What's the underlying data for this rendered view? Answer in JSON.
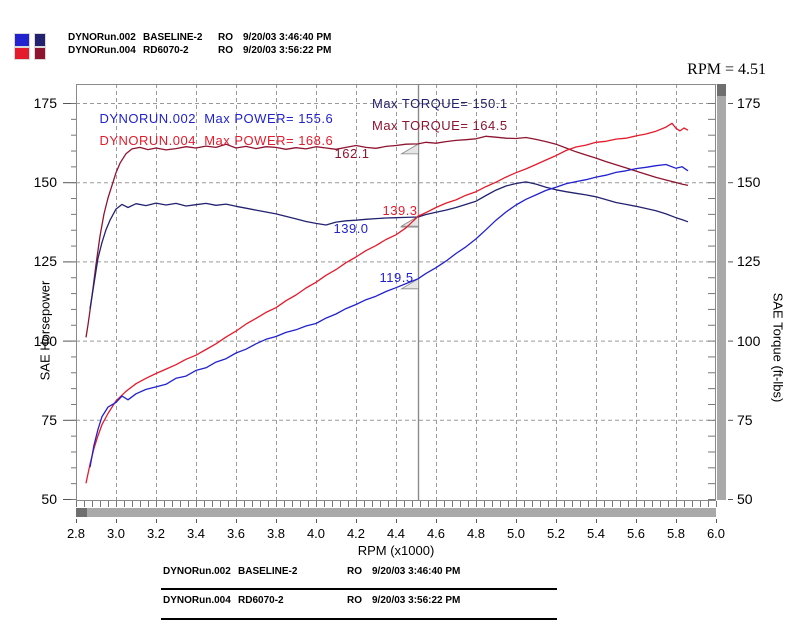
{
  "colors": {
    "power_blue": "#2222cf",
    "power_red": "#e41b2c",
    "torque_navy": "#232270",
    "torque_maroon": "#8e1430",
    "grid": "#9a9a9a",
    "axis": "#8a8a8a",
    "scrollbar": "#a9a9a9",
    "scrollbar_cap": "#6f6f6f",
    "cursor": "#8a8a8a"
  },
  "header": {
    "rpm_readout": "RPM = 4.51"
  },
  "legend": {
    "rows": [
      {
        "file": "DYNORun.002",
        "desc": "BASELINE-2",
        "op": "RO",
        "datetime": "9/20/03 3:46:40 PM"
      },
      {
        "file": "DYNORun.004",
        "desc": "RD6070-2",
        "op": "RO",
        "datetime": "9/20/03 3:56:22 PM"
      }
    ]
  },
  "annotations": {
    "rows": [
      {
        "run": "DYNORUN.002",
        "power": "Max POWER= 155.6",
        "torque": "Max TORQUE= 150.1"
      },
      {
        "run": "DYNORUN.004",
        "power": "Max POWER= 168.6",
        "torque": "Max TORQUE= 164.5"
      }
    ]
  },
  "footer_table": {
    "rows": [
      {
        "file": "DYNORun.002",
        "desc": "BASELINE-2",
        "op": "RO",
        "datetime": "9/20/03 3:46:40 PM"
      },
      {
        "file": "DYNORun.004",
        "desc": "RD6070-2",
        "op": "RO",
        "datetime": "9/20/03 3:56:22 PM"
      }
    ]
  },
  "chart_data": {
    "type": "line",
    "xlabel": "RPM (x1000)",
    "ylabel_left": "SAE Horsepower",
    "ylabel_right": "SAE Torque (ft-lbs)",
    "xlim": [
      2.8,
      6.0
    ],
    "ylim": [
      50,
      175
    ],
    "xticks": [
      "2.8",
      "3.0",
      "3.2",
      "3.4",
      "3.6",
      "3.8",
      "4.0",
      "4.2",
      "4.4",
      "4.6",
      "4.8",
      "5.0",
      "5.2",
      "5.4",
      "5.6",
      "5.8",
      "6.0"
    ],
    "yticks": [
      "175",
      "150",
      "125",
      "100",
      "75",
      "50"
    ],
    "ytick_values": [
      175,
      150,
      125,
      100,
      75,
      50
    ],
    "grid": true,
    "grid_style": "dashed",
    "legend_position": "top-left-outside",
    "cursor": {
      "rpm": 4.51
    },
    "series": [
      {
        "id": "torque-004",
        "run": "DYNORUN.004",
        "quantity": "torque",
        "color_key": "torque_maroon",
        "max": 164.5,
        "cursor_value": 162.1,
        "cursor_label": "162.1",
        "points": [
          [
            2.85,
            101
          ],
          [
            2.86,
            105
          ],
          [
            2.88,
            114
          ],
          [
            2.9,
            124
          ],
          [
            2.92,
            133
          ],
          [
            2.94,
            140
          ],
          [
            2.96,
            145
          ],
          [
            2.98,
            149
          ],
          [
            3.0,
            153
          ],
          [
            3.02,
            156
          ],
          [
            3.05,
            159
          ],
          [
            3.08,
            160.5
          ],
          [
            3.12,
            161
          ],
          [
            3.16,
            160.3
          ],
          [
            3.2,
            160.8
          ],
          [
            3.25,
            160.2
          ],
          [
            3.3,
            160.6
          ],
          [
            3.35,
            161.2
          ],
          [
            3.4,
            160.8
          ],
          [
            3.45,
            161.4
          ],
          [
            3.5,
            161.0
          ],
          [
            3.55,
            162.0
          ],
          [
            3.6,
            160.8
          ],
          [
            3.65,
            161.3
          ],
          [
            3.7,
            160.6
          ],
          [
            3.75,
            161.2
          ],
          [
            3.8,
            161.0
          ],
          [
            3.85,
            160.4
          ],
          [
            3.9,
            160.9
          ],
          [
            3.95,
            160.5
          ],
          [
            4.0,
            161.2
          ],
          [
            4.05,
            160.8
          ],
          [
            4.1,
            160.4
          ],
          [
            4.15,
            161.0
          ],
          [
            4.2,
            161.6
          ],
          [
            4.25,
            161.0
          ],
          [
            4.3,
            160.7
          ],
          [
            4.35,
            161.3
          ],
          [
            4.4,
            161.6
          ],
          [
            4.45,
            162.0
          ],
          [
            4.51,
            162.1
          ],
          [
            4.55,
            162.6
          ],
          [
            4.6,
            162.3
          ],
          [
            4.65,
            162.8
          ],
          [
            4.7,
            163.2
          ],
          [
            4.75,
            163.4
          ],
          [
            4.8,
            163.7
          ],
          [
            4.85,
            164.5
          ],
          [
            4.9,
            164.2
          ],
          [
            4.95,
            163.9
          ],
          [
            5.0,
            163.8
          ],
          [
            5.05,
            164.1
          ],
          [
            5.1,
            163.5
          ],
          [
            5.15,
            162.8
          ],
          [
            5.2,
            162.0
          ],
          [
            5.25,
            160.8
          ],
          [
            5.3,
            159.6
          ],
          [
            5.35,
            158.6
          ],
          [
            5.4,
            157.6
          ],
          [
            5.45,
            156.5
          ],
          [
            5.5,
            155.5
          ],
          [
            5.55,
            154.5
          ],
          [
            5.6,
            153.5
          ],
          [
            5.65,
            152.5
          ],
          [
            5.7,
            151.5
          ],
          [
            5.75,
            150.7
          ],
          [
            5.8,
            149.9
          ],
          [
            5.83,
            149.4
          ],
          [
            5.86,
            149.0
          ]
        ]
      },
      {
        "id": "torque-002",
        "run": "DYNORUN.002",
        "quantity": "torque",
        "color_key": "torque_navy",
        "max": 150.1,
        "cursor_value": 139.0,
        "cursor_label": "139.0",
        "points": [
          [
            2.87,
            110
          ],
          [
            2.89,
            118
          ],
          [
            2.91,
            126
          ],
          [
            2.93,
            131
          ],
          [
            2.95,
            135
          ],
          [
            2.97,
            138
          ],
          [
            3.0,
            141.5
          ],
          [
            3.03,
            143
          ],
          [
            3.06,
            142
          ],
          [
            3.1,
            143.2
          ],
          [
            3.15,
            142.6
          ],
          [
            3.2,
            143.4
          ],
          [
            3.25,
            142.8
          ],
          [
            3.3,
            143.3
          ],
          [
            3.35,
            142.5
          ],
          [
            3.4,
            142.9
          ],
          [
            3.45,
            143.3
          ],
          [
            3.5,
            142.7
          ],
          [
            3.55,
            143.1
          ],
          [
            3.6,
            142.4
          ],
          [
            3.65,
            141.8
          ],
          [
            3.7,
            141.2
          ],
          [
            3.75,
            140.6
          ],
          [
            3.8,
            140.0
          ],
          [
            3.85,
            139.2
          ],
          [
            3.9,
            138.4
          ],
          [
            3.95,
            137.6
          ],
          [
            4.0,
            137.0
          ],
          [
            4.05,
            136.5
          ],
          [
            4.1,
            137.4
          ],
          [
            4.15,
            137.8
          ],
          [
            4.2,
            138.0
          ],
          [
            4.25,
            138.3
          ],
          [
            4.3,
            138.5
          ],
          [
            4.35,
            138.7
          ],
          [
            4.4,
            138.8
          ],
          [
            4.45,
            138.9
          ],
          [
            4.51,
            139.0
          ],
          [
            4.55,
            139.8
          ],
          [
            4.6,
            140.5
          ],
          [
            4.65,
            141.2
          ],
          [
            4.7,
            142.0
          ],
          [
            4.75,
            143.0
          ],
          [
            4.8,
            144.0
          ],
          [
            4.85,
            145.8
          ],
          [
            4.9,
            147.5
          ],
          [
            4.95,
            148.8
          ],
          [
            5.0,
            149.6
          ],
          [
            5.05,
            150.1
          ],
          [
            5.1,
            149.4
          ],
          [
            5.15,
            148.4
          ],
          [
            5.2,
            147.6
          ],
          [
            5.25,
            147.0
          ],
          [
            5.3,
            146.5
          ],
          [
            5.35,
            146.0
          ],
          [
            5.4,
            145.4
          ],
          [
            5.45,
            144.5
          ],
          [
            5.5,
            143.6
          ],
          [
            5.55,
            143.0
          ],
          [
            5.6,
            142.4
          ],
          [
            5.65,
            141.7
          ],
          [
            5.7,
            141.0
          ],
          [
            5.75,
            140.0
          ],
          [
            5.8,
            138.8
          ],
          [
            5.83,
            138.2
          ],
          [
            5.86,
            137.5
          ]
        ]
      },
      {
        "id": "power-004",
        "run": "DYNORUN.004",
        "quantity": "power",
        "color_key": "power_red",
        "max": 168.6,
        "cursor_value": 139.3,
        "cursor_label": "139.3",
        "points": [
          [
            2.85,
            55
          ],
          [
            2.87,
            61
          ],
          [
            2.89,
            66
          ],
          [
            2.91,
            70
          ],
          [
            2.93,
            73.5
          ],
          [
            2.96,
            77
          ],
          [
            3.0,
            81
          ],
          [
            3.05,
            84
          ],
          [
            3.1,
            86.4
          ],
          [
            3.15,
            88.1
          ],
          [
            3.2,
            89.6
          ],
          [
            3.25,
            91.0
          ],
          [
            3.3,
            92.4
          ],
          [
            3.35,
            94.1
          ],
          [
            3.4,
            95.4
          ],
          [
            3.45,
            97.2
          ],
          [
            3.5,
            99.0
          ],
          [
            3.55,
            101.1
          ],
          [
            3.6,
            103.0
          ],
          [
            3.65,
            105.2
          ],
          [
            3.7,
            107.0
          ],
          [
            3.75,
            108.9
          ],
          [
            3.8,
            110.4
          ],
          [
            3.85,
            112.6
          ],
          [
            3.9,
            114.4
          ],
          [
            3.95,
            116.6
          ],
          [
            4.0,
            118.4
          ],
          [
            4.05,
            120.6
          ],
          [
            4.1,
            122.4
          ],
          [
            4.15,
            124.6
          ],
          [
            4.2,
            126.4
          ],
          [
            4.25,
            128.4
          ],
          [
            4.3,
            130.0
          ],
          [
            4.35,
            131.9
          ],
          [
            4.4,
            133.4
          ],
          [
            4.45,
            135.6
          ],
          [
            4.5,
            138.6
          ],
          [
            4.51,
            139.3
          ],
          [
            4.55,
            140.4
          ],
          [
            4.6,
            142.0
          ],
          [
            4.65,
            143.4
          ],
          [
            4.7,
            144.4
          ],
          [
            4.75,
            145.9
          ],
          [
            4.8,
            147.0
          ],
          [
            4.85,
            148.6
          ],
          [
            4.9,
            150.0
          ],
          [
            4.95,
            151.6
          ],
          [
            5.0,
            153.0
          ],
          [
            5.05,
            154.2
          ],
          [
            5.1,
            155.6
          ],
          [
            5.15,
            157.0
          ],
          [
            5.2,
            158.4
          ],
          [
            5.25,
            160.0
          ],
          [
            5.3,
            161.1
          ],
          [
            5.35,
            161.7
          ],
          [
            5.4,
            162.6
          ],
          [
            5.45,
            162.9
          ],
          [
            5.5,
            163.6
          ],
          [
            5.55,
            163.9
          ],
          [
            5.6,
            164.6
          ],
          [
            5.65,
            165.2
          ],
          [
            5.7,
            166.1
          ],
          [
            5.75,
            167.4
          ],
          [
            5.78,
            168.6
          ],
          [
            5.8,
            167.0
          ],
          [
            5.82,
            166.2
          ],
          [
            5.84,
            167.1
          ],
          [
            5.86,
            166.4
          ]
        ]
      },
      {
        "id": "power-002",
        "run": "DYNORUN.002",
        "quantity": "power",
        "color_key": "power_blue",
        "max": 155.6,
        "cursor_value": 119.5,
        "cursor_label": "119.5",
        "points": [
          [
            2.87,
            60
          ],
          [
            2.89,
            67
          ],
          [
            2.91,
            72
          ],
          [
            2.93,
            76
          ],
          [
            2.96,
            79
          ],
          [
            3.0,
            80.5
          ],
          [
            3.03,
            82.5
          ],
          [
            3.06,
            81.3
          ],
          [
            3.1,
            83.2
          ],
          [
            3.15,
            84.6
          ],
          [
            3.2,
            85.4
          ],
          [
            3.25,
            86.2
          ],
          [
            3.3,
            88.1
          ],
          [
            3.35,
            88.8
          ],
          [
            3.4,
            90.6
          ],
          [
            3.45,
            91.4
          ],
          [
            3.5,
            93.2
          ],
          [
            3.55,
            94.3
          ],
          [
            3.6,
            96.1
          ],
          [
            3.65,
            97.3
          ],
          [
            3.7,
            99.0
          ],
          [
            3.75,
            100.4
          ],
          [
            3.8,
            101.3
          ],
          [
            3.85,
            102.6
          ],
          [
            3.9,
            103.4
          ],
          [
            3.95,
            104.6
          ],
          [
            4.0,
            105.4
          ],
          [
            4.05,
            107.1
          ],
          [
            4.1,
            108.4
          ],
          [
            4.15,
            110.1
          ],
          [
            4.2,
            111.4
          ],
          [
            4.25,
            112.9
          ],
          [
            4.3,
            114.0
          ],
          [
            4.35,
            115.5
          ],
          [
            4.4,
            116.7
          ],
          [
            4.45,
            118.0
          ],
          [
            4.51,
            119.5
          ],
          [
            4.55,
            121.2
          ],
          [
            4.6,
            123.0
          ],
          [
            4.65,
            125.1
          ],
          [
            4.7,
            127.5
          ],
          [
            4.75,
            129.6
          ],
          [
            4.8,
            132.1
          ],
          [
            4.85,
            135.0
          ],
          [
            4.9,
            138.0
          ],
          [
            4.95,
            140.6
          ],
          [
            5.0,
            142.8
          ],
          [
            5.05,
            144.6
          ],
          [
            5.1,
            146.0
          ],
          [
            5.15,
            147.4
          ],
          [
            5.2,
            148.4
          ],
          [
            5.25,
            149.5
          ],
          [
            5.3,
            150.2
          ],
          [
            5.35,
            150.8
          ],
          [
            5.4,
            151.6
          ],
          [
            5.45,
            152.2
          ],
          [
            5.5,
            153.1
          ],
          [
            5.55,
            153.6
          ],
          [
            5.6,
            154.3
          ],
          [
            5.65,
            154.7
          ],
          [
            5.7,
            155.2
          ],
          [
            5.75,
            155.6
          ],
          [
            5.8,
            154.4
          ],
          [
            5.83,
            154.9
          ],
          [
            5.86,
            153.6
          ]
        ]
      }
    ]
  }
}
